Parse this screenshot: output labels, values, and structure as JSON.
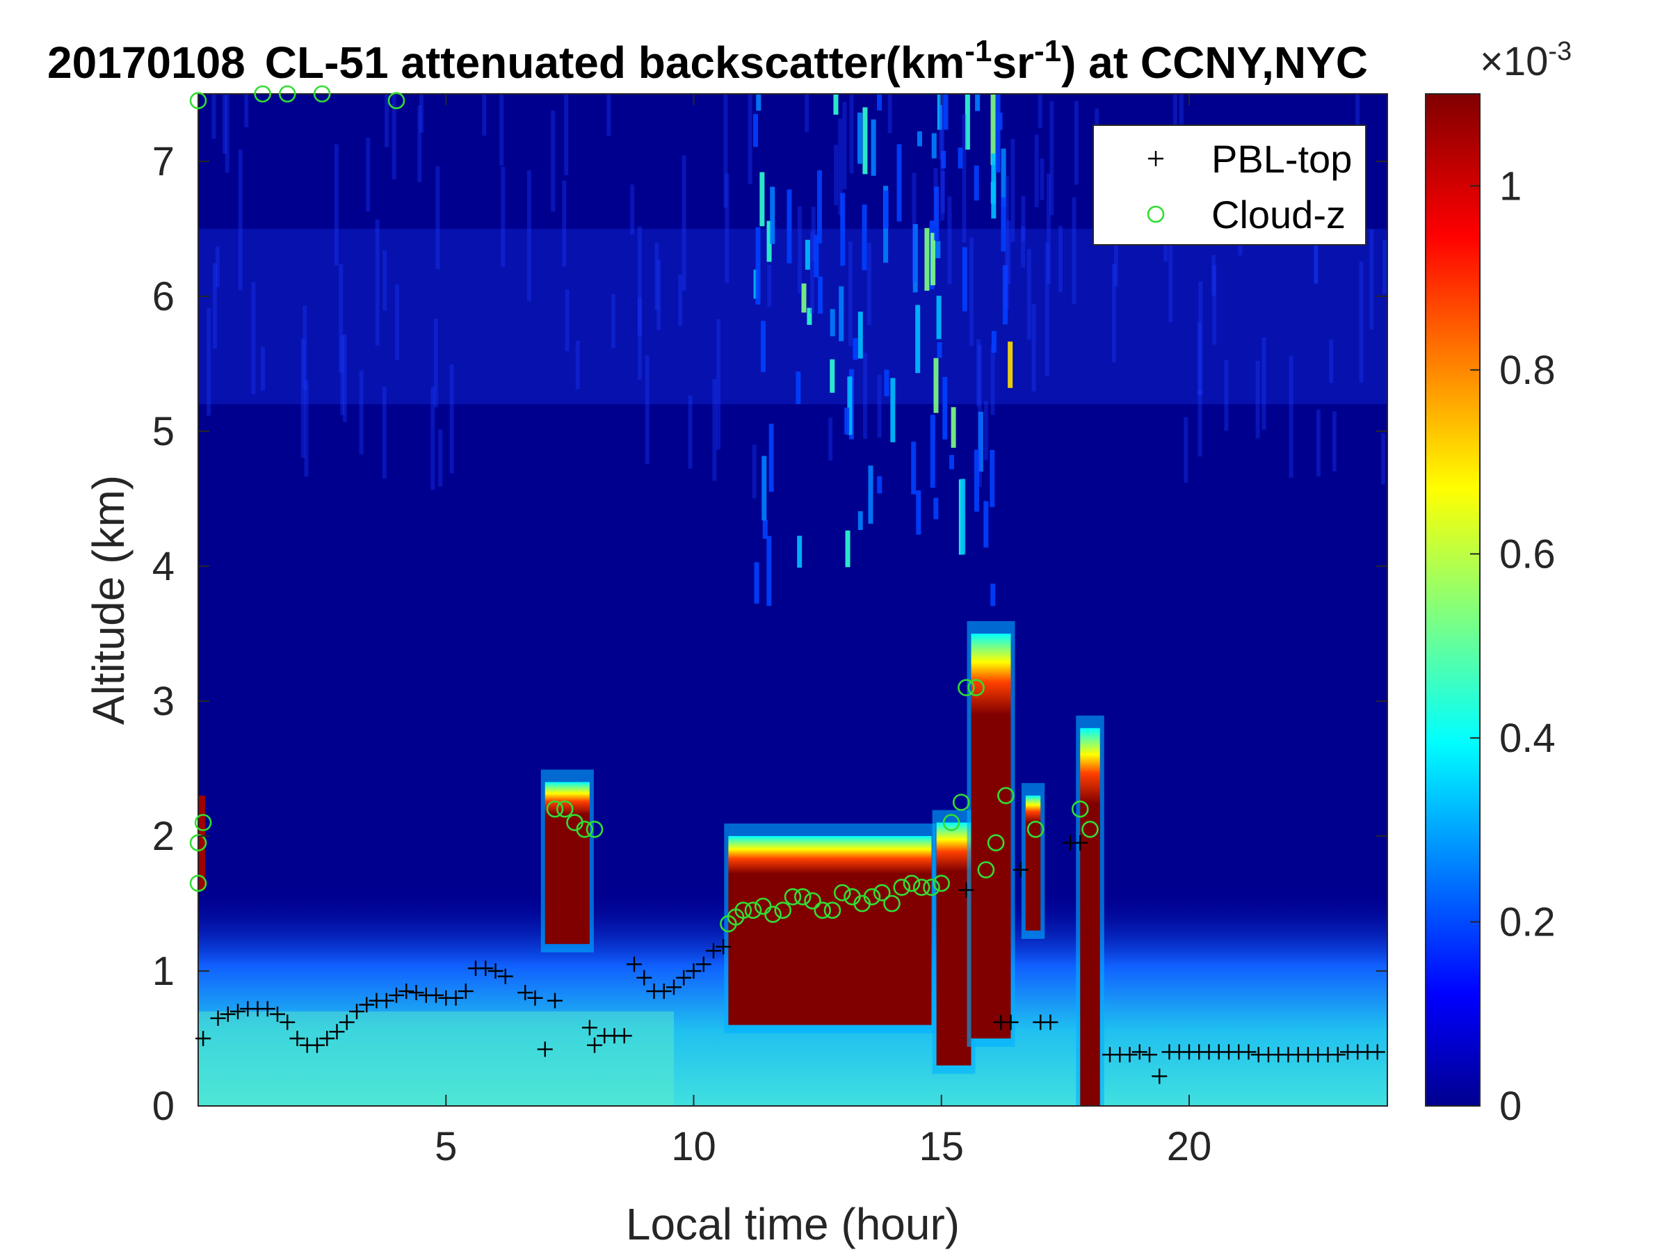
{
  "chart_data": {
    "type": "heatmap",
    "title": {
      "date": "20170108",
      "main": "CL-51 attenuated backscatter(km",
      "sup1": "-1",
      "mid": "sr",
      "sup2": "-1",
      "end": ") at CCNY,NYC"
    },
    "xlabel": "Local time (hour)",
    "ylabel": "Altitude (km)",
    "xlim": [
      0,
      24
    ],
    "ylim": [
      0,
      7.5
    ],
    "x_ticks": [
      5,
      10,
      15,
      20
    ],
    "y_ticks": [
      0,
      1,
      2,
      3,
      4,
      5,
      6,
      7
    ],
    "colorbar": {
      "colormap": "jet",
      "range": [
        0,
        0.0011
      ],
      "ticks": [
        0,
        0.2,
        0.4,
        0.6,
        0.8,
        1
      ],
      "exponent_label": "×10",
      "exponent": "-3"
    },
    "legend": {
      "placement": "top-right",
      "entries": [
        {
          "name": "PBL-top",
          "marker": "plus",
          "color": "#000000"
        },
        {
          "name": "Cloud-z",
          "marker": "circle",
          "color": "#33dd33"
        }
      ]
    },
    "series": [
      {
        "name": "PBL-top",
        "x": [
          0.1,
          0.4,
          0.6,
          0.8,
          1.0,
          1.2,
          1.4,
          1.6,
          1.8,
          2.0,
          2.2,
          2.4,
          2.6,
          2.8,
          3.0,
          3.2,
          3.4,
          3.6,
          3.8,
          4.0,
          4.2,
          4.4,
          4.6,
          4.8,
          5.0,
          5.2,
          5.4,
          5.6,
          5.8,
          6.0,
          6.2,
          6.6,
          6.8,
          7.0,
          7.2,
          7.9,
          8.0,
          8.2,
          8.4,
          8.6,
          8.8,
          9.0,
          9.2,
          9.4,
          9.6,
          9.8,
          10.0,
          10.2,
          10.4,
          10.6,
          15.5,
          16.2,
          16.4,
          16.6,
          17.0,
          17.2,
          17.6,
          17.8,
          18.4,
          18.6,
          18.8,
          19.0,
          19.2,
          19.4,
          19.6,
          19.8,
          20.0,
          20.2,
          20.4,
          20.6,
          20.8,
          21.0,
          21.2,
          21.4,
          21.6,
          21.8,
          22.0,
          22.2,
          22.4,
          22.6,
          22.8,
          23.0,
          23.2,
          23.4,
          23.6,
          23.8
        ],
        "y": [
          0.5,
          0.65,
          0.68,
          0.7,
          0.72,
          0.72,
          0.72,
          0.68,
          0.62,
          0.5,
          0.45,
          0.45,
          0.5,
          0.55,
          0.62,
          0.7,
          0.75,
          0.78,
          0.78,
          0.82,
          0.85,
          0.84,
          0.82,
          0.82,
          0.8,
          0.8,
          0.85,
          1.02,
          1.02,
          1.0,
          0.96,
          0.84,
          0.8,
          0.42,
          0.78,
          0.58,
          0.45,
          0.52,
          0.52,
          0.52,
          1.05,
          0.95,
          0.85,
          0.85,
          0.88,
          0.95,
          1.0,
          1.05,
          1.15,
          1.18,
          1.6,
          0.62,
          0.62,
          1.75,
          0.62,
          0.62,
          1.95,
          1.95,
          0.38,
          0.38,
          0.38,
          0.4,
          0.38,
          0.22,
          0.4,
          0.4,
          0.4,
          0.4,
          0.4,
          0.4,
          0.4,
          0.4,
          0.4,
          0.38,
          0.38,
          0.38,
          0.38,
          0.38,
          0.38,
          0.38,
          0.38,
          0.38,
          0.4,
          0.4,
          0.4,
          0.4
        ]
      },
      {
        "name": "Cloud-z",
        "x": [
          0.0,
          0.0,
          0.0,
          0.1,
          1.3,
          1.8,
          2.5,
          4.0,
          7.2,
          7.4,
          7.6,
          7.8,
          8.0,
          10.7,
          10.85,
          11.0,
          11.2,
          11.4,
          11.6,
          11.8,
          12.0,
          12.2,
          12.4,
          12.6,
          12.8,
          13.0,
          13.2,
          13.4,
          13.6,
          13.8,
          14.0,
          14.2,
          14.4,
          14.6,
          14.8,
          15.0,
          15.2,
          15.4,
          15.5,
          15.7,
          15.9,
          16.1,
          16.3,
          16.9,
          17.8,
          18.0
        ],
        "y": [
          7.45,
          1.95,
          1.65,
          2.1,
          7.5,
          7.5,
          7.5,
          7.45,
          2.2,
          2.2,
          2.1,
          2.05,
          2.05,
          1.35,
          1.4,
          1.45,
          1.45,
          1.48,
          1.42,
          1.45,
          1.55,
          1.55,
          1.52,
          1.45,
          1.45,
          1.58,
          1.55,
          1.5,
          1.55,
          1.58,
          1.5,
          1.62,
          1.65,
          1.62,
          1.62,
          1.65,
          2.1,
          2.25,
          3.1,
          3.1,
          1.75,
          1.95,
          2.3,
          2.05,
          2.2,
          2.05
        ]
      }
    ],
    "heatmap_features": [
      {
        "label": "surface aerosol layer",
        "x": [
          0,
          24
        ],
        "y": [
          0,
          1.4
        ],
        "value": 0.00025
      },
      {
        "label": "cloud",
        "x": [
          7.0,
          7.9
        ],
        "y": [
          1.2,
          2.4
        ],
        "value": 0.0011
      },
      {
        "label": "cloud",
        "x": [
          10.7,
          14.8
        ],
        "y": [
          0.6,
          2.0
        ],
        "value": 0.0011
      },
      {
        "label": "cloud",
        "x": [
          14.9,
          15.6
        ],
        "y": [
          0.3,
          2.1
        ],
        "value": 0.0011
      },
      {
        "label": "cloud",
        "x": [
          15.6,
          16.4
        ],
        "y": [
          0.5,
          3.5
        ],
        "value": 0.0011
      },
      {
        "label": "cloud",
        "x": [
          16.7,
          17.0
        ],
        "y": [
          1.3,
          2.3
        ],
        "value": 0.0011
      },
      {
        "label": "cloud",
        "x": [
          17.8,
          18.2
        ],
        "y": [
          0.0,
          2.8
        ],
        "value": 0.0011
      },
      {
        "label": "cirrus streaks",
        "x": [
          11.0,
          16.5
        ],
        "y": [
          3.6,
          7.5
        ],
        "value": 0.00025
      }
    ]
  }
}
